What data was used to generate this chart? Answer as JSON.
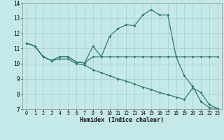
{
  "xlabel": "Humidex (Indice chaleur)",
  "background_color": "#c5e8e8",
  "grid_color": "#aacfcf",
  "line_color": "#2e7d6e",
  "xlim": [
    -0.5,
    23.5
  ],
  "ylim": [
    7,
    14
  ],
  "xticks": [
    0,
    1,
    2,
    3,
    4,
    5,
    6,
    7,
    8,
    9,
    10,
    11,
    12,
    13,
    14,
    15,
    16,
    17,
    18,
    19,
    20,
    21,
    22,
    23
  ],
  "yticks": [
    7,
    8,
    9,
    10,
    11,
    12,
    13,
    14
  ],
  "line1_y": [
    11.35,
    11.15,
    10.45,
    10.2,
    10.45,
    10.45,
    10.1,
    10.05,
    10.45,
    10.45,
    10.45,
    10.45,
    10.45,
    10.45,
    10.45,
    10.45,
    10.45,
    10.45,
    10.45,
    10.45,
    10.45,
    10.45,
    10.45,
    10.45
  ],
  "line2_y": [
    11.35,
    11.15,
    10.45,
    10.2,
    10.45,
    10.45,
    10.1,
    10.05,
    11.15,
    10.45,
    11.8,
    12.3,
    12.55,
    12.5,
    13.2,
    13.55,
    13.2,
    13.2,
    10.45,
    9.2,
    8.5,
    7.5,
    7.1,
    7.05
  ],
  "line3_y": [
    11.35,
    11.15,
    10.45,
    10.2,
    10.3,
    10.3,
    10.0,
    9.9,
    9.6,
    9.4,
    9.2,
    9.0,
    8.85,
    8.65,
    8.45,
    8.3,
    8.1,
    7.95,
    7.8,
    7.65,
    8.4,
    8.1,
    7.3,
    7.05
  ]
}
